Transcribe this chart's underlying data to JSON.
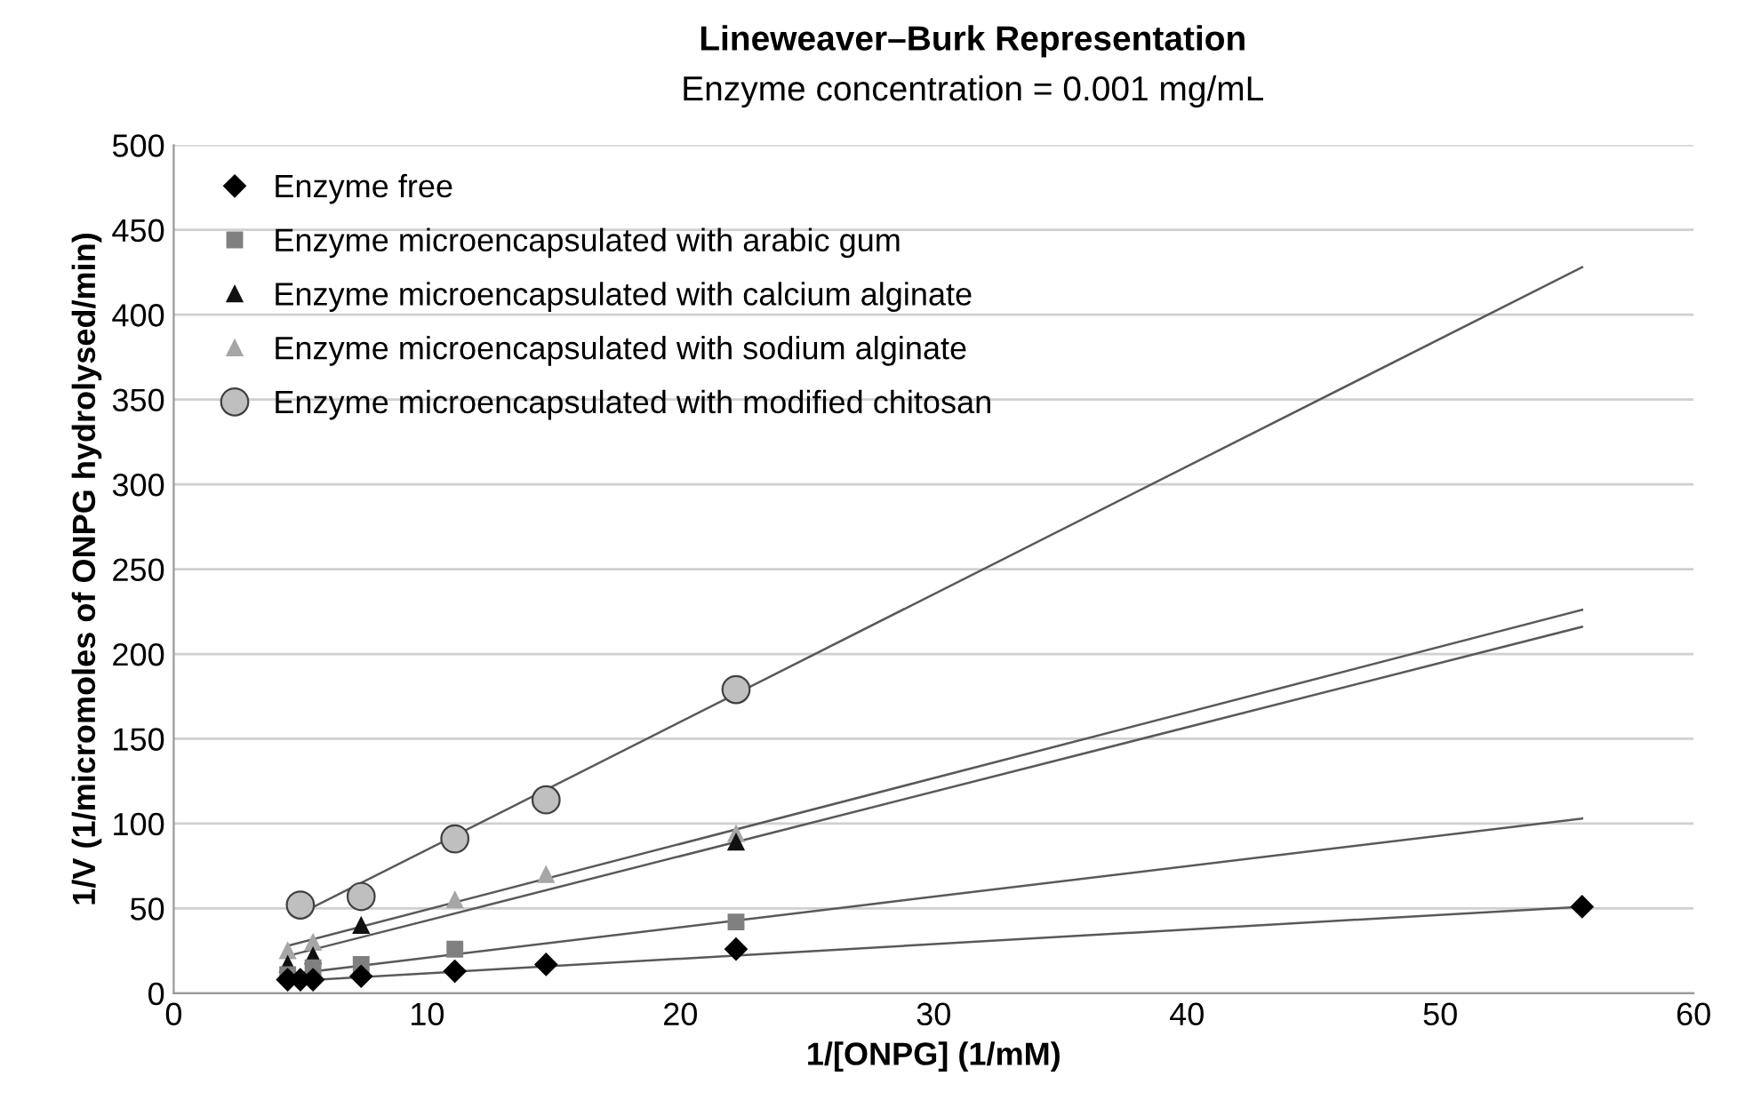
{
  "chart_data": {
    "type": "scatter",
    "title": "Lineweaver–Burk Representation",
    "subtitle": "Enzyme concentration = 0.001 mg/mL",
    "xlabel": "1/[ONPG] (1/mM)",
    "ylabel": "1/V (1/micromoles of ONPG hydrolysed/min)",
    "xlim": [
      0,
      60
    ],
    "xticks": [
      0,
      10,
      20,
      30,
      40,
      50,
      60
    ],
    "ylim": [
      0,
      500
    ],
    "yticks": [
      0,
      50,
      100,
      150,
      200,
      250,
      300,
      350,
      400,
      450,
      500
    ],
    "grid": "y",
    "legend": "top left",
    "series": [
      {
        "name": "Enzyme free",
        "marker": "diamond",
        "color": "#000000",
        "x": [
          4.5,
          5,
          5.5,
          7.4,
          11.1,
          14.7,
          22.2,
          55.6
        ],
        "values": [
          8,
          8,
          8,
          10,
          13,
          17,
          26,
          51
        ]
      },
      {
        "name": "Enzyme microencapsulated with arabic gum",
        "marker": "square",
        "color": "#808080",
        "x": [
          4.5,
          5.5,
          7.4,
          11.1,
          22.2
        ],
        "values": [
          11,
          15,
          17,
          26,
          42
        ]
      },
      {
        "name": "Enzyme microencapsulated with calcium alginate",
        "marker": "triangle",
        "color": "#111111",
        "x": [
          4.5,
          5.5,
          7.4,
          22.2
        ],
        "values": [
          17,
          22,
          40,
          89
        ]
      },
      {
        "name": "Enzyme microencapsulated with sodium alginate",
        "marker": "triangle",
        "color": "#a6a6a6",
        "x": [
          4.5,
          5.5,
          11.1,
          14.7,
          22.2
        ],
        "values": [
          25,
          30,
          55,
          70,
          94
        ]
      },
      {
        "name": "Enzyme microencapsulated with modified chitosan",
        "marker": "circle",
        "color": "#bfbfbf",
        "x": [
          5,
          7.4,
          11.1,
          14.7,
          22.2
        ],
        "values": [
          52,
          57,
          91,
          114,
          179
        ]
      },
      {
        "type": "line",
        "marker": "none",
        "color": "#595959",
        "x": [
          4.5,
          55.6
        ],
        "values": [
          7,
          51
        ]
      },
      {
        "type": "line",
        "marker": "none",
        "color": "#595959",
        "x": [
          4.5,
          55.6
        ],
        "values": [
          11,
          103
        ]
      },
      {
        "type": "line",
        "marker": "none",
        "color": "#595959",
        "x": [
          4.5,
          55.6
        ],
        "values": [
          22,
          216
        ]
      },
      {
        "type": "line",
        "marker": "none",
        "color": "#595959",
        "x": [
          4.5,
          55.6
        ],
        "values": [
          28,
          226
        ]
      },
      {
        "type": "line",
        "marker": "none",
        "color": "#595959",
        "x": [
          5,
          55.6
        ],
        "values": [
          47,
          428
        ]
      }
    ]
  }
}
